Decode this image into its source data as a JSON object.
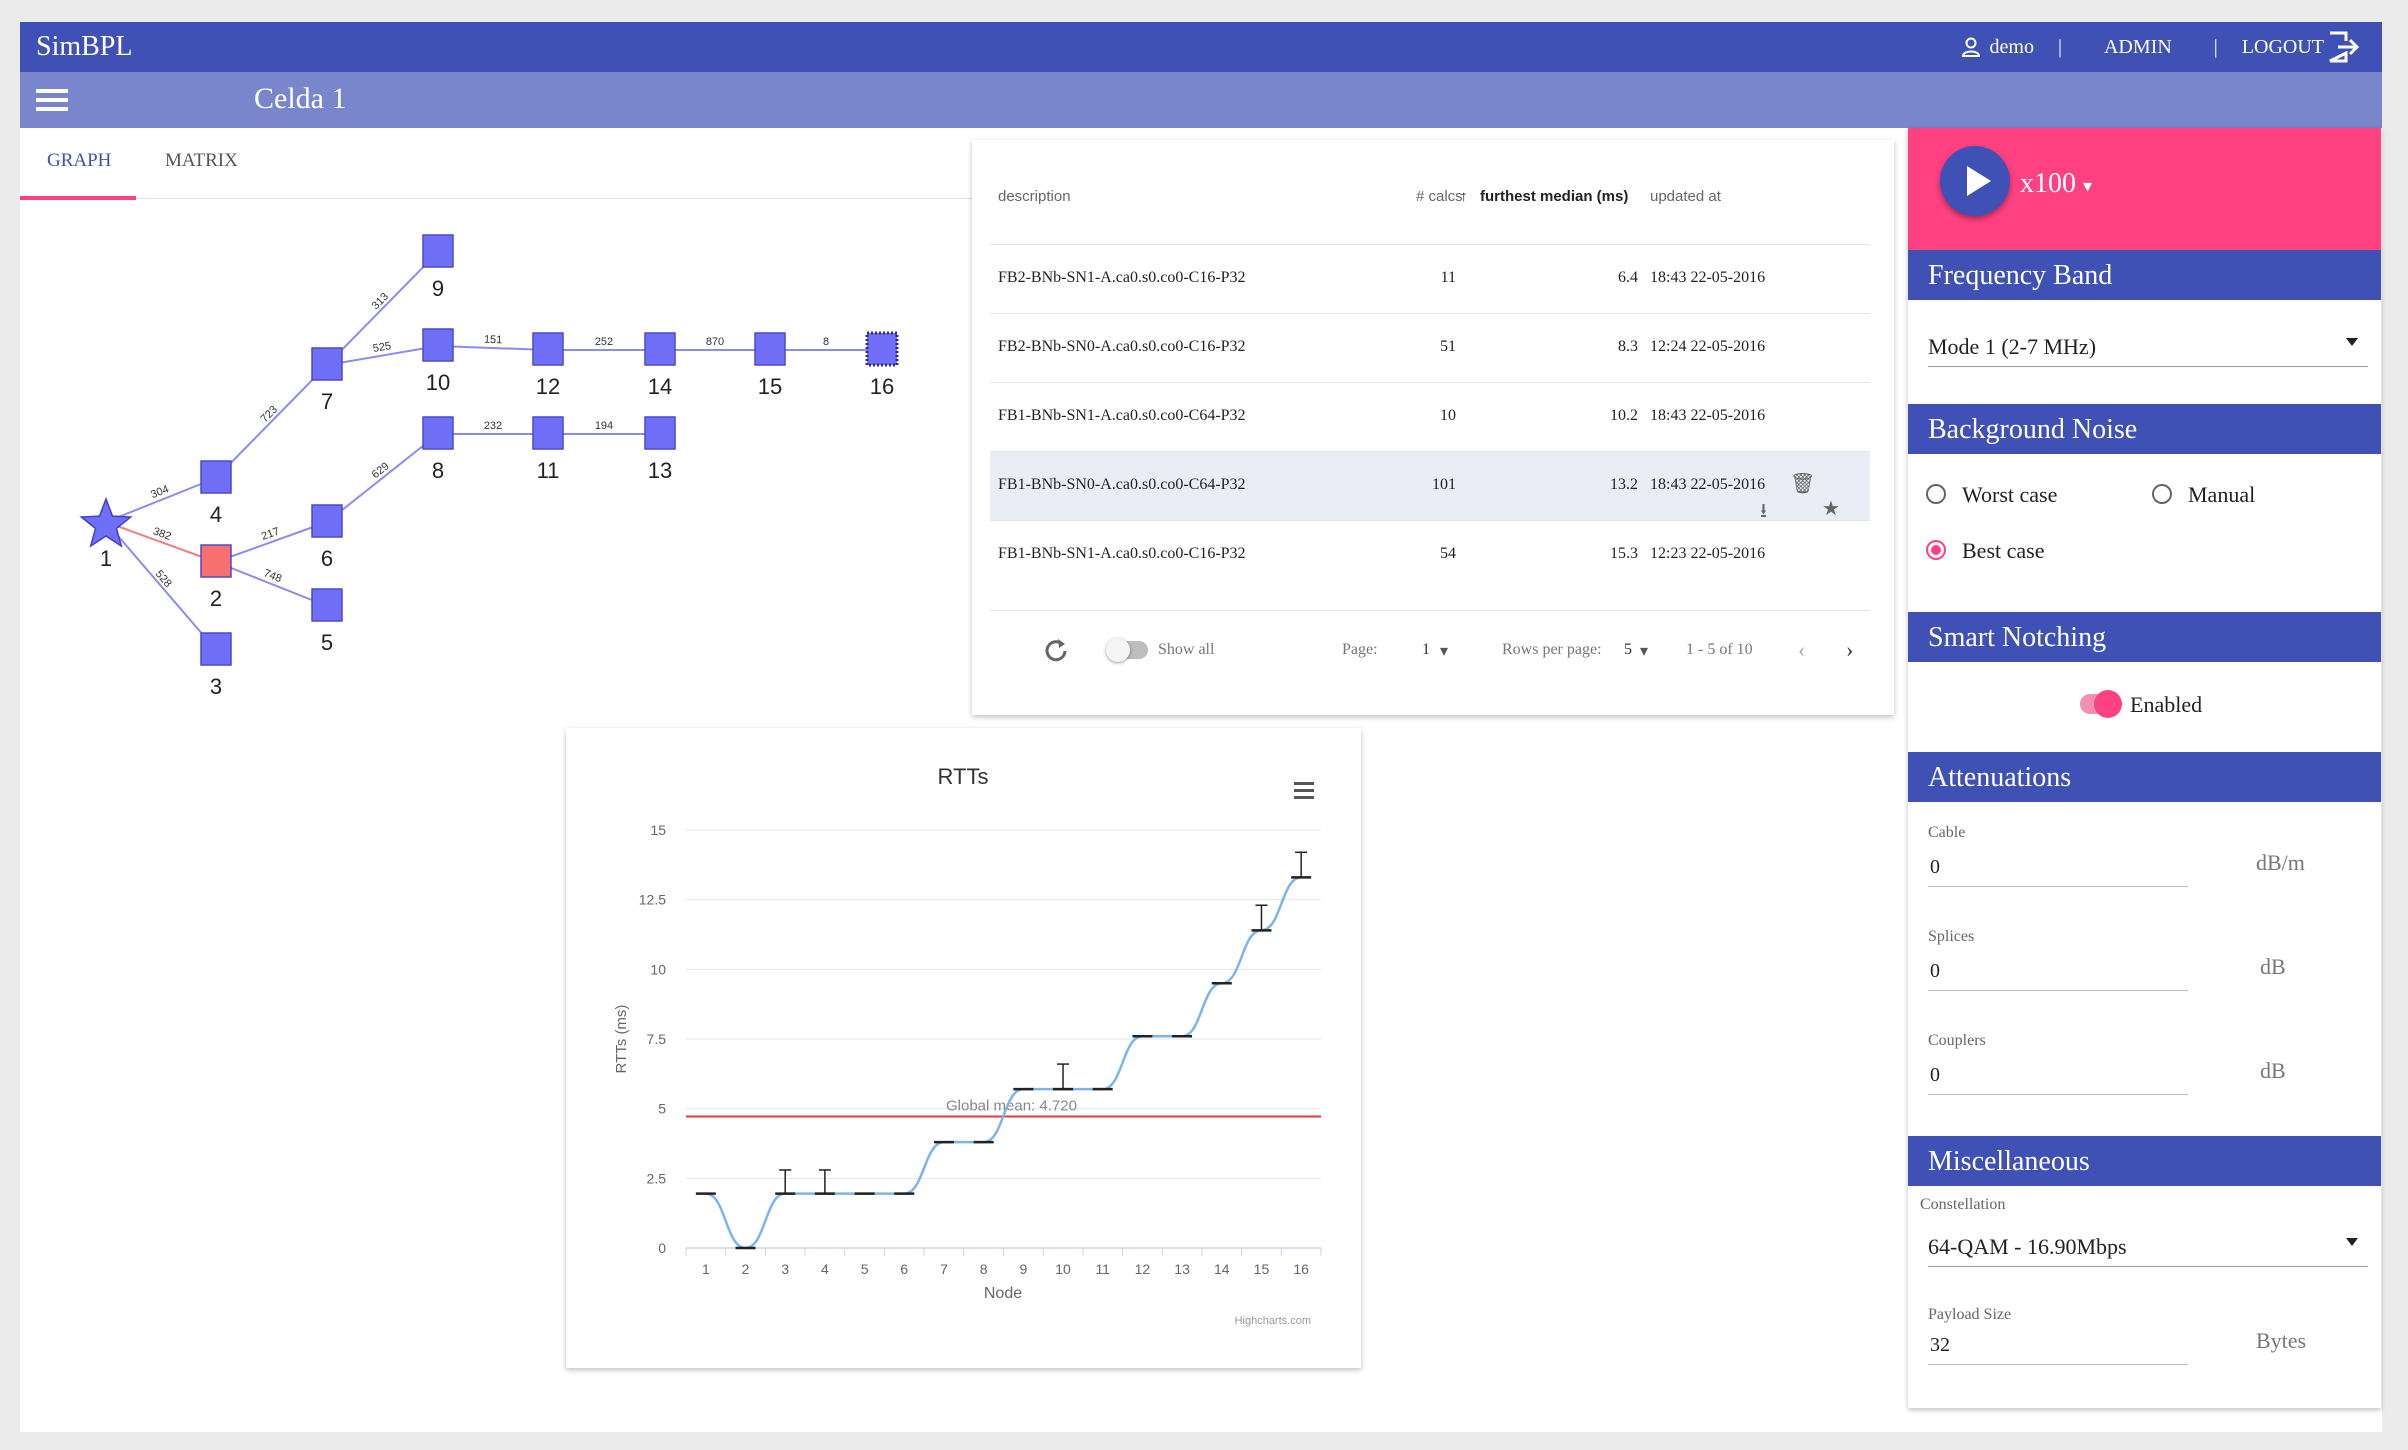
{
  "app": {
    "title": "SimBPL"
  },
  "topbar": {
    "user": "demo",
    "admin": "ADMIN",
    "logout": "LOGOUT"
  },
  "page": {
    "title": "Celda 1"
  },
  "tabs": [
    {
      "label": "GRAPH"
    },
    {
      "label": "MATRIX"
    }
  ],
  "graph": {
    "nodes": [
      {
        "id": "1",
        "shape": "star",
        "color": "#6f6ff7"
      },
      {
        "id": "2",
        "shape": "square",
        "color": "#f76f6f"
      },
      {
        "id": "3"
      },
      {
        "id": "4"
      },
      {
        "id": "5"
      },
      {
        "id": "6"
      },
      {
        "id": "7"
      },
      {
        "id": "8"
      },
      {
        "id": "9"
      },
      {
        "id": "10"
      },
      {
        "id": "11"
      },
      {
        "id": "12"
      },
      {
        "id": "13"
      },
      {
        "id": "14"
      },
      {
        "id": "15"
      },
      {
        "id": "16",
        "shape": "dotted-square"
      }
    ],
    "edges": [
      {
        "from": "1",
        "to": "4",
        "label": "304"
      },
      {
        "from": "1",
        "to": "2",
        "label": "382",
        "highlight": true
      },
      {
        "from": "1",
        "to": "3",
        "label": "528"
      },
      {
        "from": "4",
        "to": "7",
        "label": "723"
      },
      {
        "from": "2",
        "to": "6",
        "label": "217"
      },
      {
        "from": "2",
        "to": "5",
        "label": "748"
      },
      {
        "from": "7",
        "to": "9",
        "label": "313"
      },
      {
        "from": "7",
        "to": "10",
        "label": "525"
      },
      {
        "from": "6",
        "to": "8",
        "label": "629"
      },
      {
        "from": "10",
        "to": "12",
        "label": "151"
      },
      {
        "from": "12",
        "to": "14",
        "label": "252"
      },
      {
        "from": "14",
        "to": "15",
        "label": "870"
      },
      {
        "from": "15",
        "to": "16",
        "label": "8"
      },
      {
        "from": "8",
        "to": "11",
        "label": "232"
      },
      {
        "from": "11",
        "to": "13",
        "label": "194"
      }
    ]
  },
  "table": {
    "headers": {
      "description": "description",
      "calcs": "# calcs",
      "median": "furthest median (ms)",
      "updated": "updated at"
    },
    "rows": [
      {
        "description": "FB2-BNb-SN1-A.ca0.s0.co0-C16-P32",
        "calcs": "11",
        "median": "6.4",
        "updated": "18:43 22-05-2016"
      },
      {
        "description": "FB2-BNb-SN0-A.ca0.s0.co0-C16-P32",
        "calcs": "51",
        "median": "8.3",
        "updated": "12:24 22-05-2016"
      },
      {
        "description": "FB1-BNb-SN1-A.ca0.s0.co0-C64-P32",
        "calcs": "10",
        "median": "10.2",
        "updated": "18:43 22-05-2016"
      },
      {
        "description": "FB1-BNb-SN0-A.ca0.s0.co0-C64-P32",
        "calcs": "101",
        "median": "13.2",
        "updated": "18:43 22-05-2016"
      },
      {
        "description": "FB1-BNb-SN1-A.ca0.s0.co0-C16-P32",
        "calcs": "54",
        "median": "15.3",
        "updated": "12:23 22-05-2016"
      }
    ],
    "footer": {
      "show_all": "Show all",
      "page_label": "Page:",
      "page_value": "1",
      "rows_label": "Rows per page:",
      "rows_value": "5",
      "range": "1 - 5 of 10"
    }
  },
  "chart_data": {
    "type": "line",
    "title": "RTTs",
    "xlabel": "Node",
    "ylabel": "RTTs (ms)",
    "credit": "Highcharts.com",
    "categories": [
      "1",
      "2",
      "3",
      "4",
      "5",
      "6",
      "7",
      "8",
      "9",
      "10",
      "11",
      "12",
      "13",
      "14",
      "15",
      "16"
    ],
    "y_ticks": [
      "0",
      "2.5",
      "5",
      "7.5",
      "10",
      "12.5",
      "15"
    ],
    "ylim": [
      0,
      15
    ],
    "series": [
      {
        "values": [
          1.95,
          0,
          1.95,
          1.95,
          1.95,
          1.95,
          3.8,
          3.8,
          5.7,
          5.7,
          5.7,
          7.6,
          7.6,
          9.5,
          11.4,
          13.3
        ]
      }
    ],
    "error_bars": [
      {
        "x": "3",
        "low": 1.95,
        "high": 2.8
      },
      {
        "x": "4",
        "low": 1.95,
        "high": 2.8
      },
      {
        "x": "10",
        "low": 5.7,
        "high": 6.6
      },
      {
        "x": "15",
        "low": 11.4,
        "high": 12.3
      },
      {
        "x": "16",
        "low": 13.3,
        "high": 14.2
      }
    ],
    "plot_line": {
      "value": 4.72,
      "label": "Global mean: 4.720",
      "color": "#e53935"
    },
    "line_color": "#7cb5ec",
    "grid": true
  },
  "controls": {
    "speed": "x100",
    "frequency_band": {
      "title": "Frequency Band",
      "value": "Mode 1 (2-7 MHz)"
    },
    "background_noise": {
      "title": "Background Noise",
      "options": [
        "Worst case",
        "Manual",
        "Best case"
      ],
      "selected": "Best case"
    },
    "smart_notching": {
      "title": "Smart Notching",
      "label": "Enabled"
    },
    "attenuations": {
      "title": "Attenuations",
      "cable": {
        "label": "Cable",
        "value": "0",
        "unit": "dB/m"
      },
      "splices": {
        "label": "Splices",
        "value": "0",
        "unit": "dB"
      },
      "couplers": {
        "label": "Couplers",
        "value": "0",
        "unit": "dB"
      }
    },
    "misc": {
      "title": "Miscellaneous",
      "constellation_label": "Constellation",
      "constellation": "64-QAM - 16.90Mbps",
      "payload_label": "Payload Size",
      "payload": "32",
      "payload_unit": "Bytes"
    }
  },
  "colors": {
    "primary": "#3f51b5",
    "primary_light": "#7986cb",
    "accent": "#ff4081",
    "node": "#6f6ff7"
  }
}
